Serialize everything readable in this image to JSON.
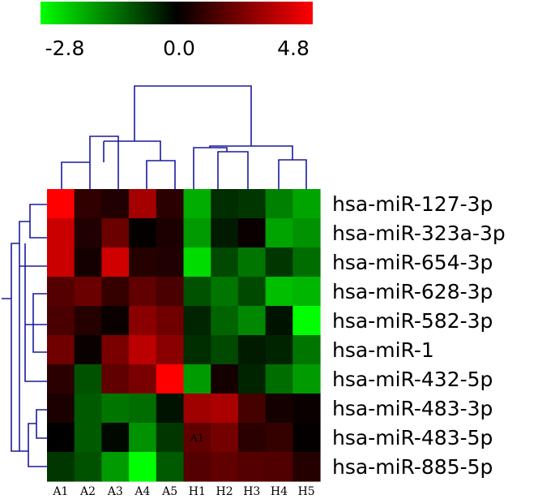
{
  "chart_data": {
    "type": "heatmap",
    "colorscale": {
      "min": -2.8,
      "mid": 0.0,
      "max": 4.8,
      "min_color": "#00ff00",
      "mid_color": "#000000",
      "max_color": "#ff0000",
      "tick_labels": [
        "-2.8",
        "0.0",
        "4.8"
      ]
    },
    "columns": [
      "A1",
      "A2",
      "A3",
      "A4",
      "A5",
      "H1",
      "H2",
      "H3",
      "H4",
      "H5"
    ],
    "rows": [
      "hsa-miR-127-3p",
      "hsa-miR-323a-3p",
      "hsa-miR-654-3p",
      "hsa-miR-628-3p",
      "hsa-miR-582-3p",
      "hsa-miR-1",
      "hsa-miR-432-5p",
      "hsa-miR-483-3p",
      "hsa-miR-483-5p",
      "hsa-miR-885-5p"
    ],
    "values": [
      [
        4.8,
        0.9,
        0.6,
        3.1,
        0.8,
        -1.9,
        -0.5,
        -0.6,
        -1.4,
        -1.8
      ],
      [
        3.8,
        0.6,
        2.0,
        0.1,
        0.5,
        -1.7,
        -0.3,
        0.2,
        -1.8,
        -1.6
      ],
      [
        3.8,
        0.4,
        3.9,
        0.7,
        0.6,
        -2.4,
        -0.8,
        -1.3,
        -0.6,
        -1.2
      ],
      [
        1.6,
        2.0,
        1.0,
        1.8,
        1.4,
        -0.9,
        -1.3,
        -0.8,
        -2.1,
        -2.0
      ],
      [
        1.4,
        0.7,
        0.2,
        2.6,
        2.1,
        -0.4,
        -1.1,
        -1.5,
        -0.2,
        -2.8
      ],
      [
        2.1,
        0.2,
        2.3,
        3.5,
        2.6,
        -0.5,
        -0.8,
        -0.3,
        -0.4,
        -1.3
      ],
      [
        0.8,
        -0.9,
        1.8,
        2.3,
        4.8,
        -1.7,
        0.4,
        -0.4,
        -1.2,
        -1.7
      ],
      [
        0.5,
        -1.0,
        -1.3,
        -1.2,
        -0.2,
        3.0,
        3.2,
        1.3,
        0.4,
        0.2
      ],
      [
        0.0,
        -1.0,
        -0.1,
        -1.6,
        -0.6,
        1.8,
        2.2,
        0.8,
        1.0,
        0.1
      ],
      [
        -0.6,
        -0.9,
        -1.7,
        -2.8,
        -1.0,
        1.6,
        1.8,
        1.6,
        1.5,
        0.7
      ]
    ],
    "annotations": [
      {
        "row": "hsa-miR-483-5p",
        "column": "H1",
        "text": "A1"
      }
    ]
  }
}
